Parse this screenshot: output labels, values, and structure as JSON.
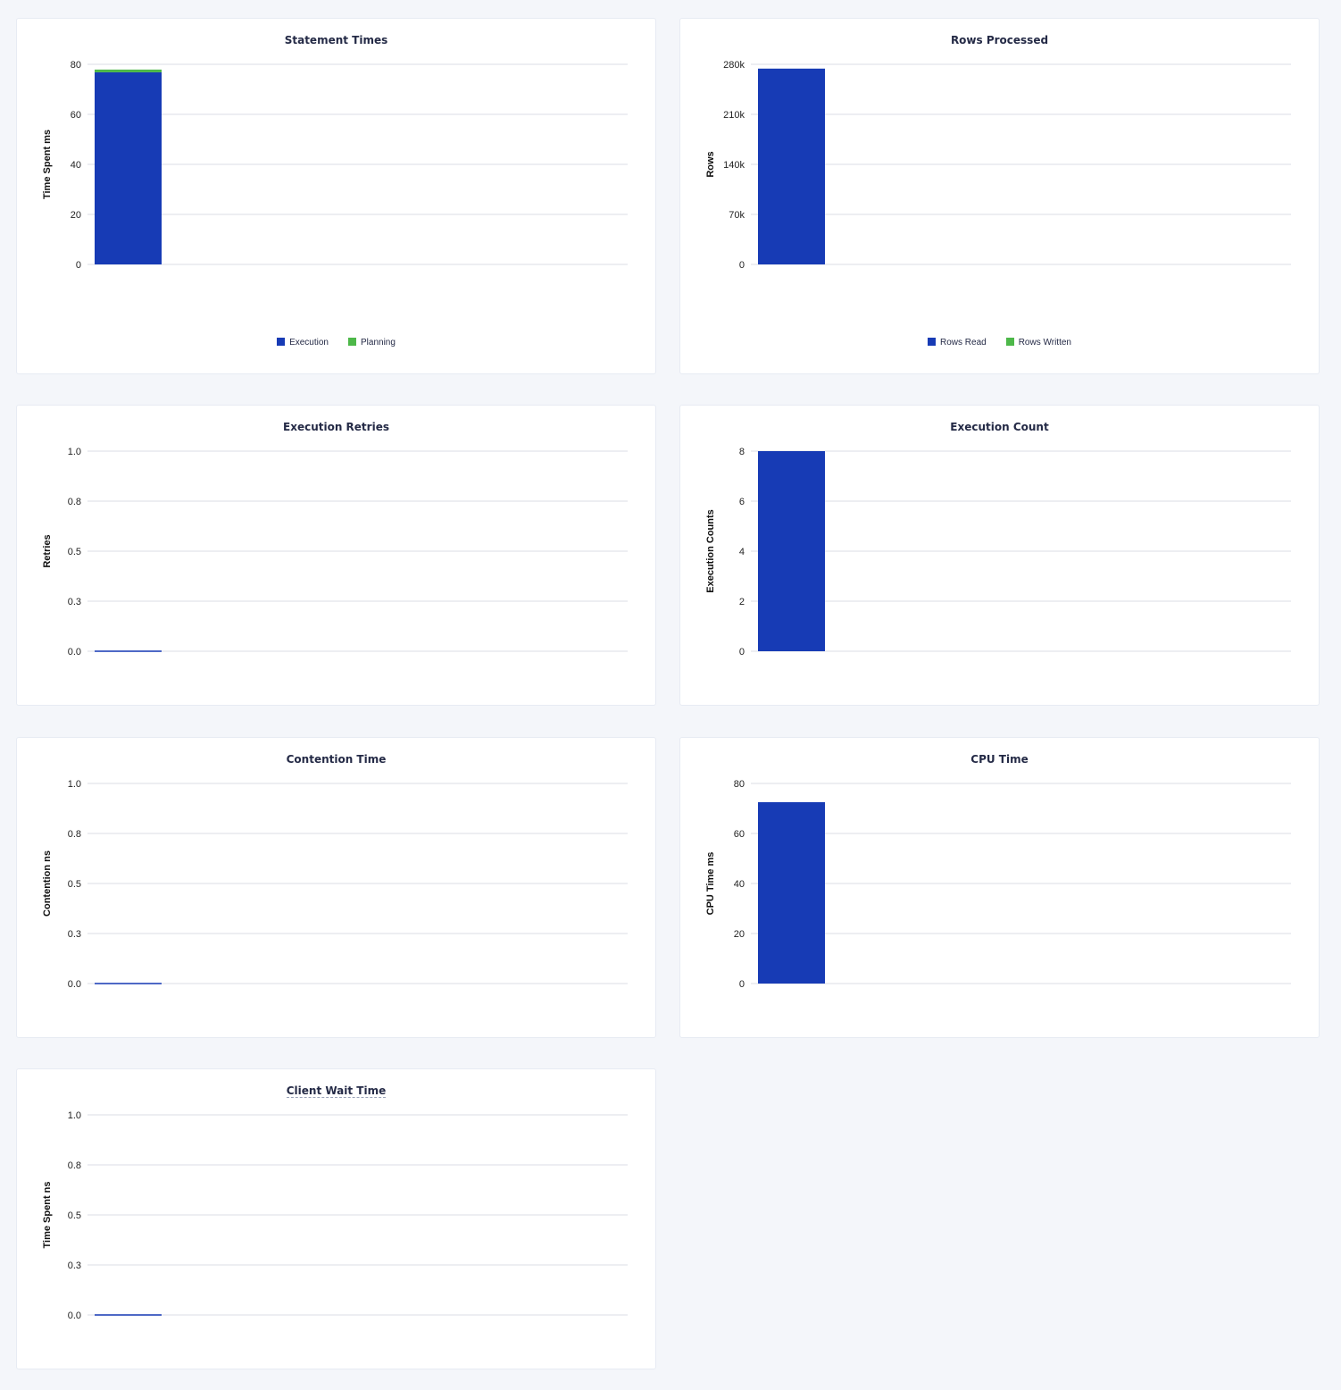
{
  "colors": {
    "execution": "#173bb5",
    "planning": "#4db849",
    "background": "#f4f6fa"
  },
  "chart_data": [
    {
      "type": "bar",
      "title": "Statement Times",
      "ylabel": "Time Spent ms",
      "ylim": [
        0,
        80
      ],
      "yticks": [
        "0",
        "20",
        "40",
        "60",
        "80"
      ],
      "grid": true,
      "legend_position": "bottom",
      "stacked": true,
      "series": [
        {
          "name": "Execution",
          "values": [
            76.8
          ],
          "color": "#173bb5"
        },
        {
          "name": "Planning",
          "values": [
            1.1
          ],
          "color": "#4db849"
        }
      ]
    },
    {
      "type": "bar",
      "title": "Rows Processed",
      "ylabel": "Rows",
      "ylim": [
        0,
        280000
      ],
      "yticks": [
        "0",
        "70k",
        "140k",
        "210k",
        "280k"
      ],
      "grid": true,
      "legend_position": "bottom",
      "stacked": true,
      "series": [
        {
          "name": "Rows Read",
          "values": [
            274000
          ],
          "color": "#173bb5"
        },
        {
          "name": "Rows Written",
          "values": [
            0
          ],
          "color": "#4db849"
        }
      ]
    },
    {
      "type": "bar",
      "title": "Execution Retries",
      "ylabel": "Retries",
      "ylim": [
        0,
        1
      ],
      "yticks": [
        "0.0",
        "0.3",
        "0.5",
        "0.8",
        "1.0"
      ],
      "grid": true,
      "series": [
        {
          "values": [
            0
          ],
          "color": "#173bb5"
        }
      ]
    },
    {
      "type": "bar",
      "title": "Execution Count",
      "ylabel": "Execution Counts",
      "ylim": [
        0,
        8
      ],
      "yticks": [
        "0",
        "2",
        "4",
        "6",
        "8"
      ],
      "grid": true,
      "series": [
        {
          "values": [
            8
          ],
          "color": "#173bb5"
        }
      ]
    },
    {
      "type": "bar",
      "title": "Contention Time",
      "ylabel": "Contention ns",
      "ylim": [
        0,
        1
      ],
      "yticks": [
        "0.0",
        "0.3",
        "0.5",
        "0.8",
        "1.0"
      ],
      "grid": true,
      "series": [
        {
          "values": [
            0
          ],
          "color": "#173bb5"
        }
      ]
    },
    {
      "type": "bar",
      "title": "CPU Time",
      "ylabel": "CPU Time ms",
      "ylim": [
        0,
        80
      ],
      "yticks": [
        "0",
        "20",
        "40",
        "60",
        "80"
      ],
      "grid": true,
      "series": [
        {
          "values": [
            72.5
          ],
          "color": "#173bb5"
        }
      ]
    },
    {
      "type": "bar",
      "title": "Client Wait Time",
      "ylabel": "Time Spent ns",
      "ylim": [
        0,
        1
      ],
      "yticks": [
        "0.0",
        "0.3",
        "0.5",
        "0.8",
        "1.0"
      ],
      "grid": true,
      "title_tooltip": true,
      "series": [
        {
          "values": [
            0
          ],
          "color": "#173bb5"
        }
      ]
    }
  ]
}
